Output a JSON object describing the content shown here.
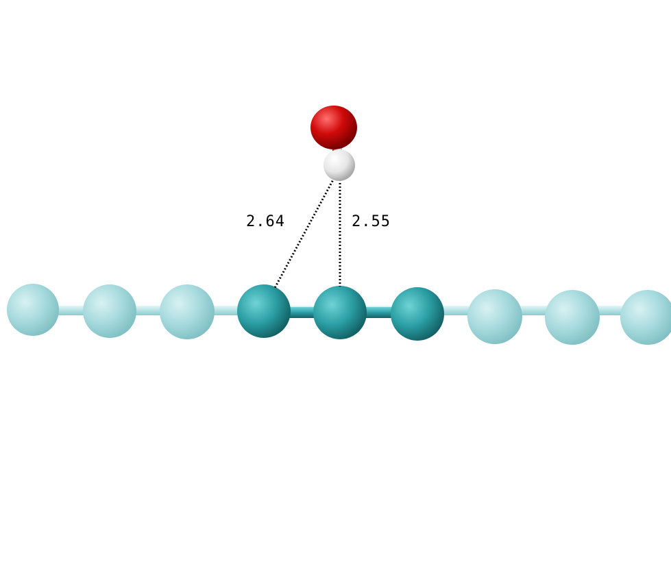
{
  "molecule": {
    "distances": [
      {
        "label": "2.64"
      },
      {
        "label": "2.55"
      }
    ],
    "colors": {
      "oxygen": "#d10a0a",
      "hydrogen": "#f2f2f2",
      "carbon_highlight": "#2a9ea3",
      "carbon_faded": "#a6dadd",
      "bond": "#2a9ea3",
      "bond_faded": "#b4e2e4",
      "dotted_line": "#000000"
    }
  }
}
